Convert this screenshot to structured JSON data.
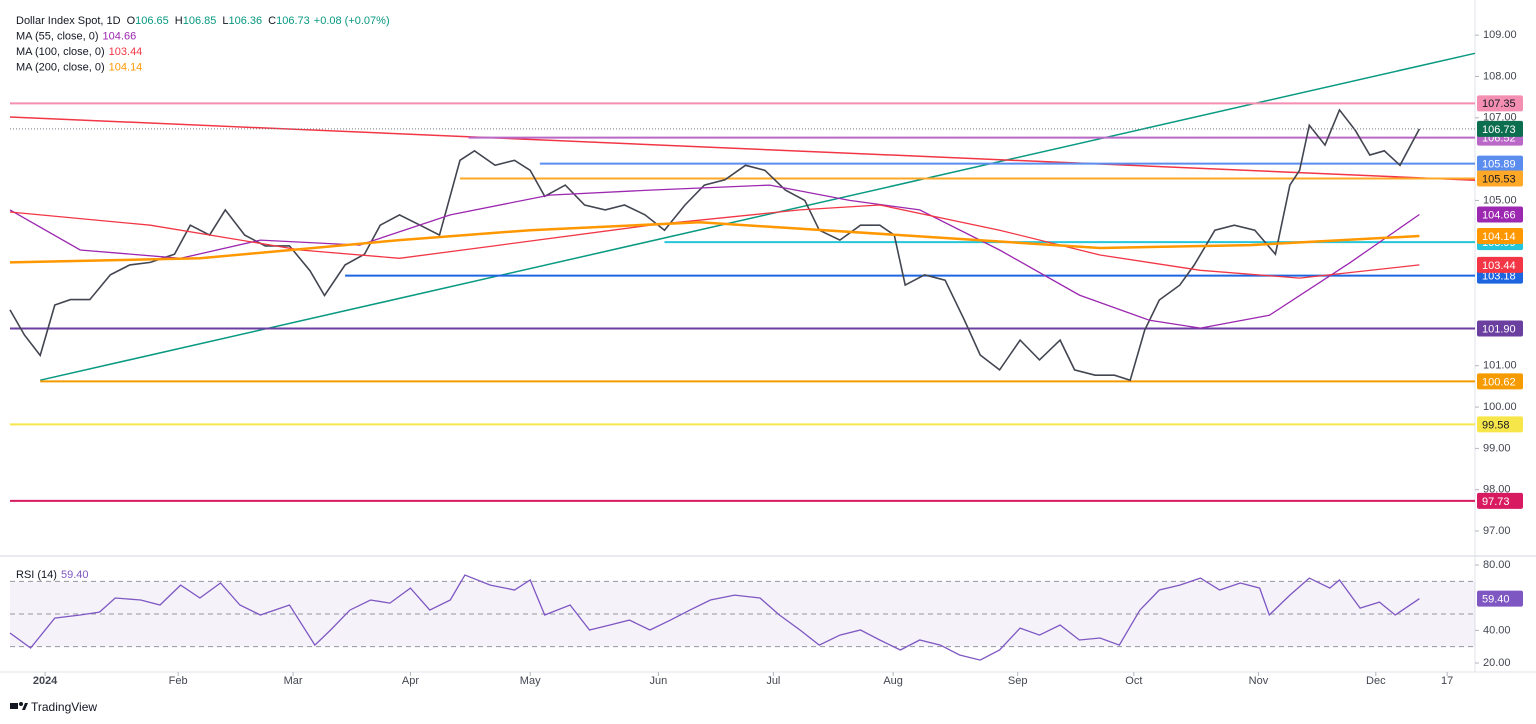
{
  "chart_data": [
    {
      "type": "line",
      "title": "Dollar Index Spot, 1D",
      "ohlc": [
        {
          "label": "O",
          "value": 106.65
        },
        {
          "label": "H",
          "value": 106.85
        },
        {
          "label": "L",
          "value": 106.36
        },
        {
          "label": "C",
          "value": 106.73
        }
      ],
      "change": "+0.08 (+0.07%)",
      "xlim": [
        -0.29,
        11.82
      ],
      "xticks": [
        {
          "value": 0,
          "label": "2024"
        },
        {
          "value": 1.1,
          "label": "Feb"
        },
        {
          "value": 2.05,
          "label": "Mar"
        },
        {
          "value": 3.02,
          "label": "Apr"
        },
        {
          "value": 4.01,
          "label": "May"
        },
        {
          "value": 5.07,
          "label": "Jun"
        },
        {
          "value": 6.02,
          "label": "Jul"
        },
        {
          "value": 7.01,
          "label": "Aug"
        },
        {
          "value": 8.04,
          "label": "Sep"
        },
        {
          "value": 9.0,
          "label": "Oct"
        },
        {
          "value": 10.03,
          "label": "Nov"
        },
        {
          "value": 11.0,
          "label": "Dec"
        },
        {
          "value": 11.59,
          "label": "17"
        }
      ],
      "ylim": [
        96.42,
        109.85
      ],
      "yticks": [
        {
          "value": 109,
          "label": "109.00"
        },
        {
          "value": 108,
          "label": "108.00"
        },
        {
          "value": 107,
          "label": "107.00"
        },
        {
          "value": 105,
          "label": "105.00"
        },
        {
          "value": 101,
          "label": "101.00"
        },
        {
          "value": 100,
          "label": "100.00"
        },
        {
          "value": 99,
          "label": "99.00"
        },
        {
          "value": 98,
          "label": "98.00"
        },
        {
          "value": 97,
          "label": "97.00"
        }
      ],
      "series": [
        {
          "color": "#434651",
          "badge_color": "#0b6e4f",
          "x": [
            -0.29,
            -0.17,
            -0.04,
            0.08,
            0.21,
            0.37,
            0.54,
            0.7,
            0.87,
            1.07,
            1.2,
            1.36,
            1.49,
            1.65,
            1.82,
            2.02,
            2.19,
            2.31,
            2.48,
            2.64,
            2.77,
            2.93,
            3.1,
            3.26,
            3.43,
            3.55,
            3.72,
            3.88,
            4.01,
            4.13,
            4.3,
            4.46,
            4.63,
            4.79,
            4.96,
            5.12,
            5.29,
            5.45,
            5.62,
            5.79,
            5.95,
            6.12,
            6.28,
            6.4,
            6.57,
            6.74,
            6.9,
            7.02,
            7.11,
            7.27,
            7.44,
            7.6,
            7.73,
            7.89,
            8.06,
            8.22,
            8.39,
            8.51,
            8.68,
            8.84,
            8.97,
            9.09,
            9.21,
            9.38,
            9.5,
            9.67,
            9.83,
            10.0,
            10.17,
            10.29,
            10.37,
            10.45,
            10.58,
            10.7,
            10.83,
            10.95,
            11.07,
            11.2,
            11.36
          ],
          "values": [
            102.35,
            101.74,
            101.25,
            102.47,
            102.6,
            102.6,
            103.2,
            103.44,
            103.5,
            103.7,
            104.4,
            104.16,
            104.77,
            104.16,
            103.9,
            103.9,
            103.3,
            102.7,
            103.44,
            103.7,
            104.4,
            104.65,
            104.4,
            104.16,
            105.97,
            106.2,
            105.85,
            105.97,
            105.73,
            105.1,
            105.37,
            104.89,
            104.77,
            104.89,
            104.65,
            104.28,
            104.89,
            105.37,
            105.5,
            105.85,
            105.73,
            105.25,
            105.0,
            104.28,
            104.04,
            104.4,
            104.4,
            104.16,
            102.95,
            103.2,
            103.07,
            102.1,
            101.26,
            100.9,
            101.62,
            101.14,
            101.62,
            100.9,
            100.77,
            100.77,
            100.65,
            101.86,
            102.59,
            102.95,
            103.44,
            104.28,
            104.4,
            104.28,
            103.7,
            105.37,
            105.73,
            106.82,
            106.34,
            107.19,
            106.7,
            106.1,
            106.2,
            105.85,
            106.73
          ]
        },
        {
          "name": "MA (55, close, 0)",
          "color": "#9c27b0",
          "x": [
            -0.29,
            0.29,
            1.12,
            1.78,
            2.6,
            3.35,
            4.17,
            5.0,
            5.99,
            6.65,
            7.23,
            7.89,
            8.55,
            9.13,
            9.55,
            10.12,
            10.79,
            11.36
          ],
          "values": [
            104.77,
            103.8,
            103.6,
            104.04,
            103.92,
            104.65,
            105.13,
            105.25,
            105.37,
            105.0,
            104.77,
            103.8,
            102.71,
            102.1,
            101.91,
            102.22,
            103.5,
            104.66
          ]
        },
        {
          "name": "MA (100, close, 0)",
          "color": "#f23645",
          "x": [
            -0.29,
            0.87,
            2.11,
            2.93,
            3.76,
            5.0,
            6.24,
            6.9,
            7.89,
            8.72,
            9.55,
            10.37,
            11.36
          ],
          "values": [
            104.72,
            104.4,
            103.8,
            103.6,
            103.92,
            104.4,
            104.77,
            104.89,
            104.28,
            103.68,
            103.31,
            103.12,
            103.44
          ]
        },
        {
          "name": "MA (200, close, 0)",
          "color": "#ff9800",
          "x": [
            -0.29,
            1.28,
            2.93,
            4.01,
            5.41,
            7.07,
            8.72,
            9.96,
            11.36
          ],
          "values": [
            103.5,
            103.6,
            104.04,
            104.28,
            104.47,
            104.16,
            103.85,
            103.92,
            104.14
          ]
        }
      ],
      "levels": [
        {
          "value": 107.35,
          "color": "#f48fb1",
          "from": -0.29
        },
        {
          "value": 106.52,
          "color": "#ba68c8",
          "from": 3.5
        },
        {
          "value": 105.89,
          "color": "#5b8def",
          "from": 4.09
        },
        {
          "value": 105.53,
          "color": "#ffa726",
          "from": 3.43
        },
        {
          "value": 103.99,
          "color": "#26c6da",
          "from": 5.12
        },
        {
          "value": 103.18,
          "color": "#1e66e0",
          "from": 2.48
        },
        {
          "value": 101.9,
          "label": "101.90",
          "color": "#6a3fa0",
          "from": -0.29
        },
        {
          "value": 100.62,
          "color": "#f59b00",
          "from": -0.04
        },
        {
          "value": 99.58,
          "color": "#f7e64a",
          "from": -0.29
        },
        {
          "value": 97.73,
          "color": "#d81b60",
          "from": -0.29
        }
      ],
      "trendlines": [
        {
          "color": "#089981",
          "x": [
            -0.04,
            11.82
          ],
          "values": [
            100.65,
            108.56
          ]
        },
        {
          "color": "#f23645",
          "x": [
            -0.29,
            11.82
          ],
          "values": [
            107.02,
            105.49
          ]
        }
      ]
    },
    {
      "type": "line",
      "title": "RSI (14)",
      "ylim": [
        14.5,
        84.3
      ],
      "yticks": [
        {
          "value": 80,
          "label": "80.00"
        },
        {
          "value": 40,
          "label": "40.00"
        },
        {
          "value": 20,
          "label": "20.00"
        }
      ],
      "levels": [
        70,
        50,
        30
      ],
      "series": [
        {
          "color": "#7e57c2",
          "x": [
            -0.29,
            -0.12,
            0.08,
            0.29,
            0.45,
            0.58,
            0.79,
            0.95,
            1.12,
            1.28,
            1.45,
            1.61,
            1.78,
            2.02,
            2.23,
            2.36,
            2.52,
            2.69,
            2.85,
            3.02,
            3.18,
            3.35,
            3.47,
            3.68,
            3.88,
            4.01,
            4.13,
            4.34,
            4.5,
            4.67,
            4.83,
            5.0,
            5.17,
            5.33,
            5.5,
            5.7,
            5.91,
            6.07,
            6.24,
            6.4,
            6.57,
            6.74,
            6.9,
            7.07,
            7.23,
            7.4,
            7.56,
            7.73,
            7.89,
            8.06,
            8.22,
            8.39,
            8.55,
            8.72,
            8.88,
            9.05,
            9.21,
            9.38,
            9.55,
            9.71,
            9.88,
            10.04,
            10.12,
            10.29,
            10.45,
            10.62,
            10.7,
            10.87,
            11.03,
            11.16,
            11.36
          ],
          "values": [
            38.4,
            29.2,
            47.5,
            49.4,
            51.2,
            59.8,
            58.6,
            55.5,
            67.7,
            59.8,
            69,
            55.5,
            49.4,
            55.5,
            31,
            40.2,
            52.4,
            58.6,
            56.7,
            65.9,
            52.4,
            58.6,
            73.9,
            67.7,
            64.7,
            70.8,
            49.4,
            55.5,
            40.2,
            43.3,
            46.3,
            40.2,
            46.3,
            52.4,
            58.6,
            61.6,
            59.8,
            49.4,
            40.2,
            31,
            37.1,
            40.2,
            34.1,
            28,
            34.1,
            31,
            24.9,
            21.8,
            28,
            41.4,
            37.1,
            43.3,
            34.1,
            35.3,
            31,
            52.4,
            64.7,
            67.7,
            72,
            64.7,
            69,
            65.9,
            49.4,
            61.6,
            72,
            65.9,
            70.8,
            53.6,
            57.3,
            49.4,
            59.4
          ],
          "value_labels": [
            null,
            null,
            null,
            null,
            null,
            null,
            null,
            null,
            null,
            null,
            null,
            null,
            null,
            null,
            null,
            null,
            null,
            null,
            null,
            null,
            null,
            null,
            null,
            null,
            null,
            null,
            null,
            null,
            null,
            null,
            null,
            null,
            null,
            null,
            null,
            null,
            null,
            null,
            null,
            null,
            null,
            null,
            null,
            null,
            null,
            null,
            null,
            null,
            null,
            null,
            null,
            null,
            null,
            null,
            null,
            null,
            null,
            null,
            null,
            null,
            null,
            null,
            null,
            null,
            null,
            null,
            null,
            null,
            null,
            null,
            "59.40"
          ]
        }
      ]
    }
  ],
  "footer": {
    "brand": "TradingView"
  }
}
